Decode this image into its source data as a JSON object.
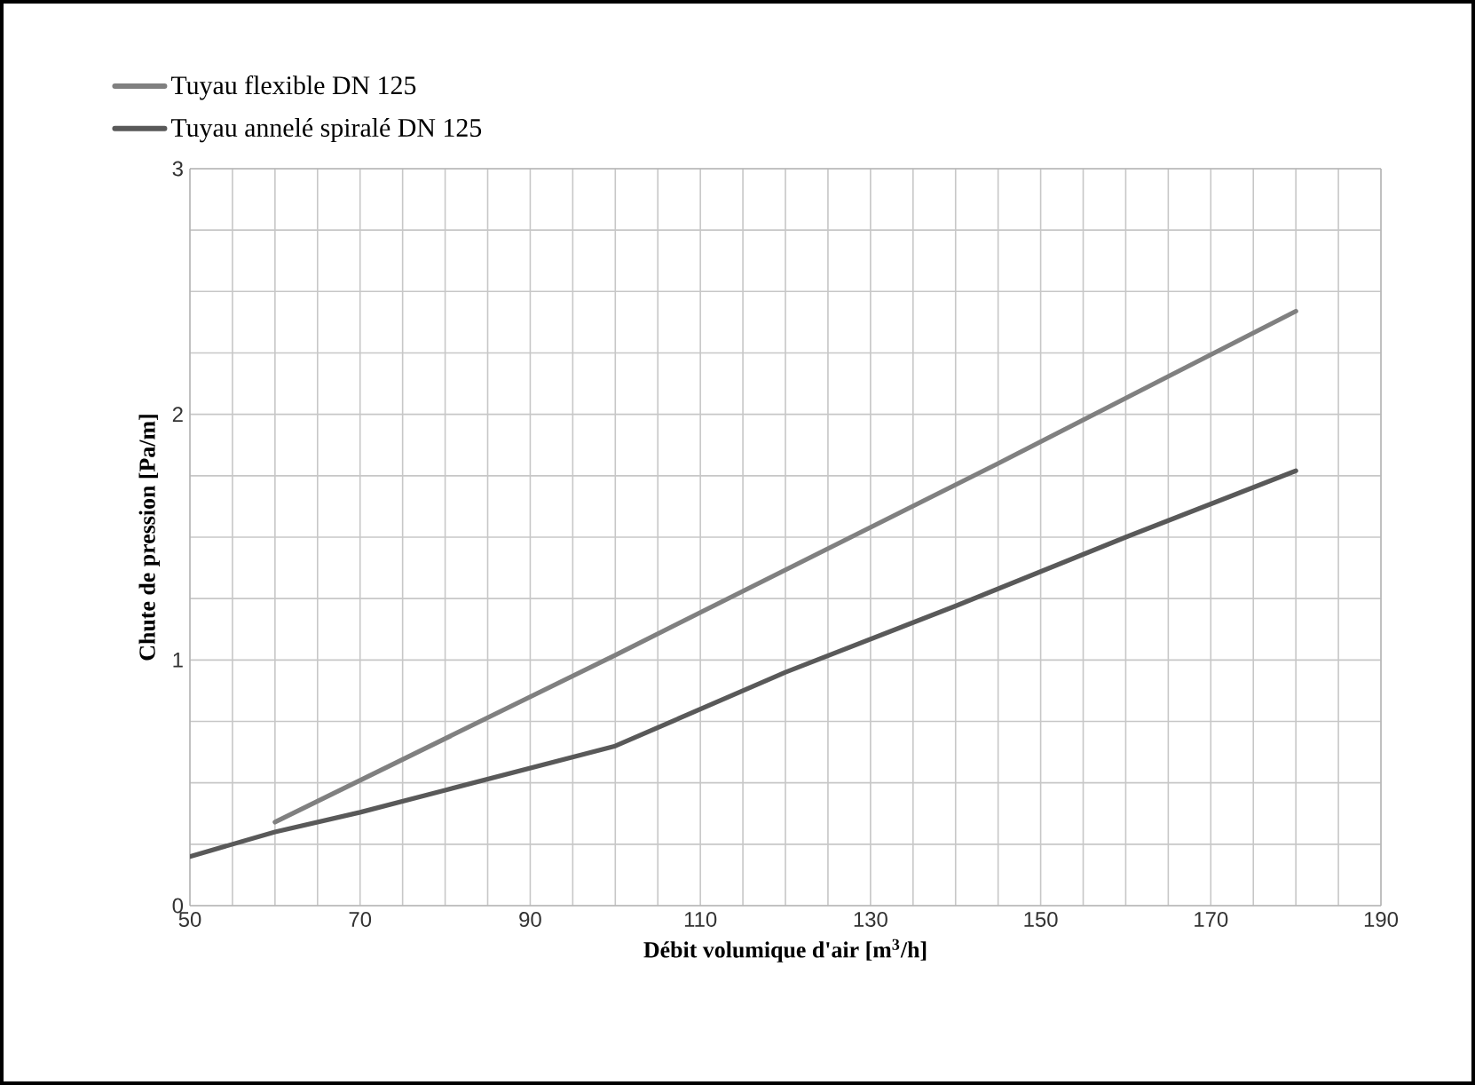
{
  "chart_data": {
    "type": "line",
    "xlabel": "Débit volumique d'air [m$^{3}$/h]",
    "ylabel": "Chute de pression [Pa/m]",
    "xlim": [
      50,
      190
    ],
    "xticks": [
      50,
      {
        "value": 55,
        "label": null
      },
      {
        "value": 60,
        "label": null
      },
      {
        "value": 65,
        "label": null
      },
      70,
      {
        "value": 75,
        "label": null
      },
      {
        "value": 80,
        "label": null
      },
      {
        "value": 85,
        "label": null
      },
      90,
      {
        "value": 95,
        "label": null
      },
      {
        "value": 100,
        "label": null
      },
      {
        "value": 105,
        "label": null
      },
      110,
      {
        "value": 115,
        "label": null
      },
      {
        "value": 120,
        "label": null
      },
      {
        "value": 125,
        "label": null
      },
      130,
      {
        "value": 135,
        "label": null
      },
      {
        "value": 140,
        "label": null
      },
      {
        "value": 145,
        "label": null
      },
      150,
      {
        "value": 155,
        "label": null
      },
      {
        "value": 160,
        "label": null
      },
      {
        "value": 165,
        "label": null
      },
      170,
      {
        "value": 175,
        "label": null
      },
      {
        "value": 180,
        "label": null
      },
      {
        "value": 185,
        "label": null
      },
      190
    ],
    "ylim": [
      0,
      3
    ],
    "yticks": [
      0,
      {
        "value": 0.25,
        "label": null
      },
      {
        "value": 0.5,
        "label": null
      },
      {
        "value": 0.75,
        "label": null
      },
      1,
      {
        "value": 1.25,
        "label": null
      },
      {
        "value": 1.5,
        "label": null
      },
      {
        "value": 1.75,
        "label": null
      },
      2,
      {
        "value": 2.25,
        "label": null
      },
      {
        "value": 2.5,
        "label": null
      },
      {
        "value": 2.75,
        "label": null
      },
      3
    ],
    "grid": true,
    "legend": "top left",
    "marker": "none",
    "line_style": "solid",
    "series": [
      {
        "name": "Tuyau flexible DN 125",
        "color": "#808080",
        "x": [
          60,
          100,
          145,
          180
        ],
        "values": [
          0.34,
          1.02,
          1.8,
          2.42
        ]
      },
      {
        "name": "Tuyau annelé spiralé DN 125",
        "color": "#595959",
        "x": [
          50,
          60,
          70,
          80,
          90,
          100,
          120,
          140,
          160,
          180
        ],
        "values": [
          0.2,
          0.3,
          0.38,
          0.47,
          0.56,
          0.65,
          0.95,
          1.22,
          1.5,
          1.77
        ]
      }
    ]
  }
}
